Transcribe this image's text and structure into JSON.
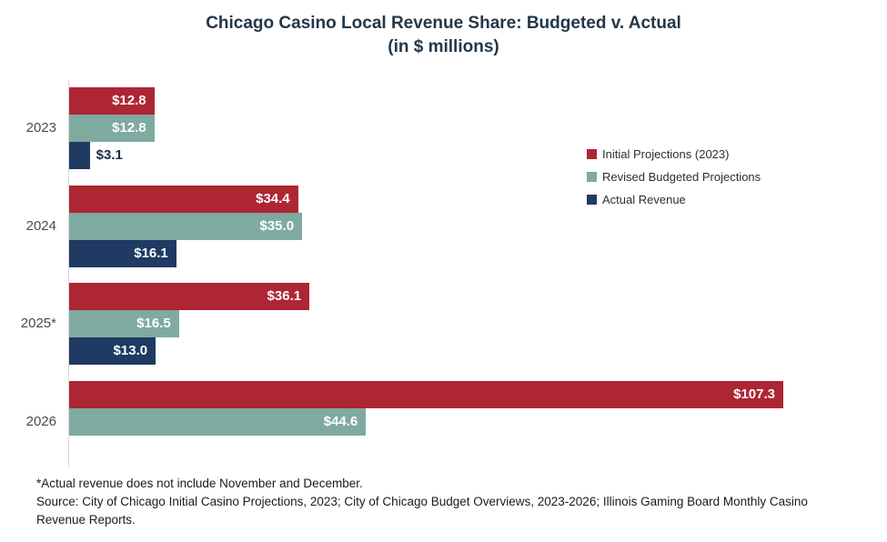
{
  "title": {
    "line1": "Chicago Casino Local Revenue Share: Budgeted v. Actual",
    "line2": "(in $ millions)"
  },
  "chart_data": {
    "type": "bar",
    "orientation": "horizontal",
    "title": "Chicago Casino Local Revenue Share: Budgeted v. Actual (in $ millions)",
    "categories": [
      "2023",
      "2024",
      "2025*",
      "2026"
    ],
    "series": [
      {
        "name": "Initial Projections (2023)",
        "color": "#ae2533",
        "values": [
          12.8,
          34.4,
          36.1,
          107.3
        ]
      },
      {
        "name": "Revised Budgeted Projections",
        "color": "#7faaa0",
        "values": [
          12.8,
          35.0,
          16.5,
          44.6
        ]
      },
      {
        "name": "Actual Revenue",
        "color": "#1f3a63",
        "values": [
          3.1,
          16.1,
          13.0,
          null
        ]
      }
    ],
    "value_prefix": "$",
    "value_decimals": 1,
    "xlim": [
      0,
      110
    ],
    "grid": false,
    "legend_position": "right",
    "axis_line_color": "#d8d8d8"
  },
  "footnotes": {
    "asterisk_note": "*Actual revenue does not include November and December.",
    "source": "Source: City of Chicago Initial Casino Projections, 2023;  City of Chicago Budget Overviews, 2023-2026; Illinois Gaming Board Monthly Casino Revenue Reports."
  }
}
